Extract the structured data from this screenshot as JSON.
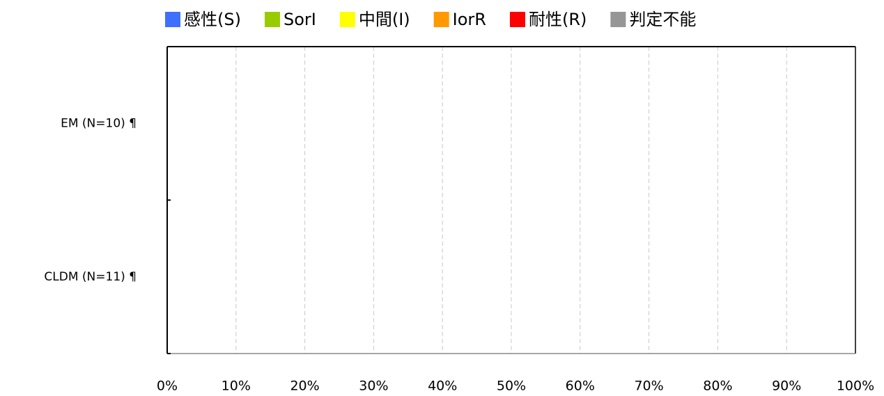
{
  "chart_data": {
    "type": "stacked-barh",
    "categories": [
      "EM (N=10) ¶",
      "CLDM (N=11) ¶"
    ],
    "series": [
      {
        "name": "感性(S)",
        "color": "#3f6fff",
        "values": [
          0,
          0
        ]
      },
      {
        "name": "SorI",
        "color": "#99cc00",
        "values": [
          0,
          0
        ]
      },
      {
        "name": "中間(I)",
        "color": "#ffff00",
        "values": [
          0,
          0
        ]
      },
      {
        "name": "IorR",
        "color": "#ff9900",
        "values": [
          0,
          0
        ]
      },
      {
        "name": "耐性(R)",
        "color": "#ff0000",
        "values": [
          0,
          0
        ]
      },
      {
        "name": "判定不能",
        "color": "#969696",
        "values": [
          0,
          0
        ]
      }
    ],
    "xlim": [
      0,
      100
    ],
    "xticks": [
      {
        "value": 0,
        "label": "0%"
      },
      {
        "value": 10,
        "label": "10%"
      },
      {
        "value": 20,
        "label": "20%"
      },
      {
        "value": 30,
        "label": "30%"
      },
      {
        "value": 40,
        "label": "40%"
      },
      {
        "value": 50,
        "label": "50%"
      },
      {
        "value": 60,
        "label": "60%"
      },
      {
        "value": 70,
        "label": "70%"
      },
      {
        "value": 80,
        "label": "80%"
      },
      {
        "value": 90,
        "label": "90%"
      },
      {
        "value": 100,
        "label": "100%"
      }
    ],
    "grid": true,
    "legend": "top"
  }
}
